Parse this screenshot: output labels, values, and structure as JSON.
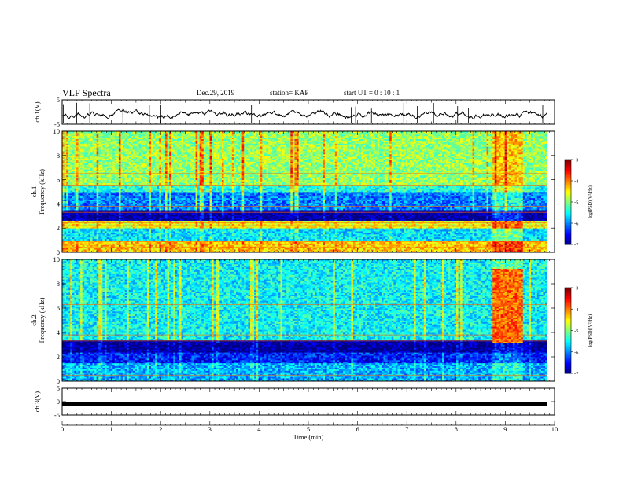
{
  "header": {
    "title": "VLF Spectra",
    "date": "Dec.29, 2019",
    "station": "station= KAP",
    "start": "start  UT =   0 : 10 : 1"
  },
  "chart_data": [
    {
      "type": "line",
      "panel": "ch1-waveform",
      "ylabel": "ch.1(V)",
      "ylim": [
        -5,
        5
      ],
      "yticks": [
        "5",
        "-5"
      ],
      "x_range_min": [
        0,
        9.85
      ],
      "y_mean_approx": -1.0
    },
    {
      "type": "heatmap",
      "panel": "ch1-spectrogram",
      "ylabel": "ch.1\nFrequency (kHz)",
      "ylabel_lines": [
        "ch.1",
        "Frequency (kHz)"
      ],
      "ylim": [
        0,
        10
      ],
      "yticks": [
        "0",
        "2",
        "4",
        "6",
        "8",
        "10"
      ],
      "colorbar": {
        "label": "log(PSD)(V²/Hz)",
        "range": [
          -7,
          -3
        ],
        "ticks": [
          "-3",
          "-4",
          "-5",
          "-6",
          "-7"
        ]
      },
      "bands_kHz_log_psd": [
        {
          "from": 0.0,
          "to": 1.0,
          "value": -4.3
        },
        {
          "from": 1.0,
          "to": 2.0,
          "value": -5.6
        },
        {
          "from": 2.0,
          "to": 2.6,
          "value": -4.5
        },
        {
          "from": 2.6,
          "to": 3.5,
          "value": -6.9
        },
        {
          "from": 3.5,
          "to": 4.9,
          "value": -6.0
        },
        {
          "from": 4.9,
          "to": 5.5,
          "value": -5.4
        },
        {
          "from": 5.5,
          "to": 10.0,
          "value": -4.9
        }
      ],
      "x_range_min": [
        0,
        9.85
      ]
    },
    {
      "type": "heatmap",
      "panel": "ch2-spectrogram",
      "ylabel": "ch.2\nFrequency (kHz)",
      "ylabel_lines": [
        "ch.2",
        "Frequency (kHz)"
      ],
      "ylim": [
        0,
        10
      ],
      "yticks": [
        "0",
        "2",
        "4",
        "6",
        "8",
        "10"
      ],
      "colorbar": {
        "label": "log(PSD)(V²/Hz)",
        "range": [
          -7,
          -3
        ],
        "ticks": [
          "-3",
          "-4",
          "-5",
          "-6",
          "-7"
        ]
      },
      "bands_kHz_log_psd": [
        {
          "from": 0.0,
          "to": 1.5,
          "value": -5.8
        },
        {
          "from": 1.5,
          "to": 2.3,
          "value": -6.4
        },
        {
          "from": 2.3,
          "to": 3.3,
          "value": -6.9
        },
        {
          "from": 3.3,
          "to": 10.0,
          "value": -5.5
        }
      ],
      "x_range_min": [
        0,
        9.85
      ]
    },
    {
      "type": "line",
      "panel": "ch3-waveform",
      "ylabel": "ch.3(V)",
      "ylim": [
        -5,
        5
      ],
      "yticks": [
        "5",
        "0",
        "-5"
      ],
      "constant_value": -1.0,
      "x_range_min": [
        0,
        9.85
      ],
      "xlabel": "Time (min)",
      "xlim": [
        0,
        10
      ],
      "xticks": [
        "0",
        "1",
        "2",
        "3",
        "4",
        "5",
        "6",
        "7",
        "8",
        "9",
        "10"
      ]
    }
  ]
}
